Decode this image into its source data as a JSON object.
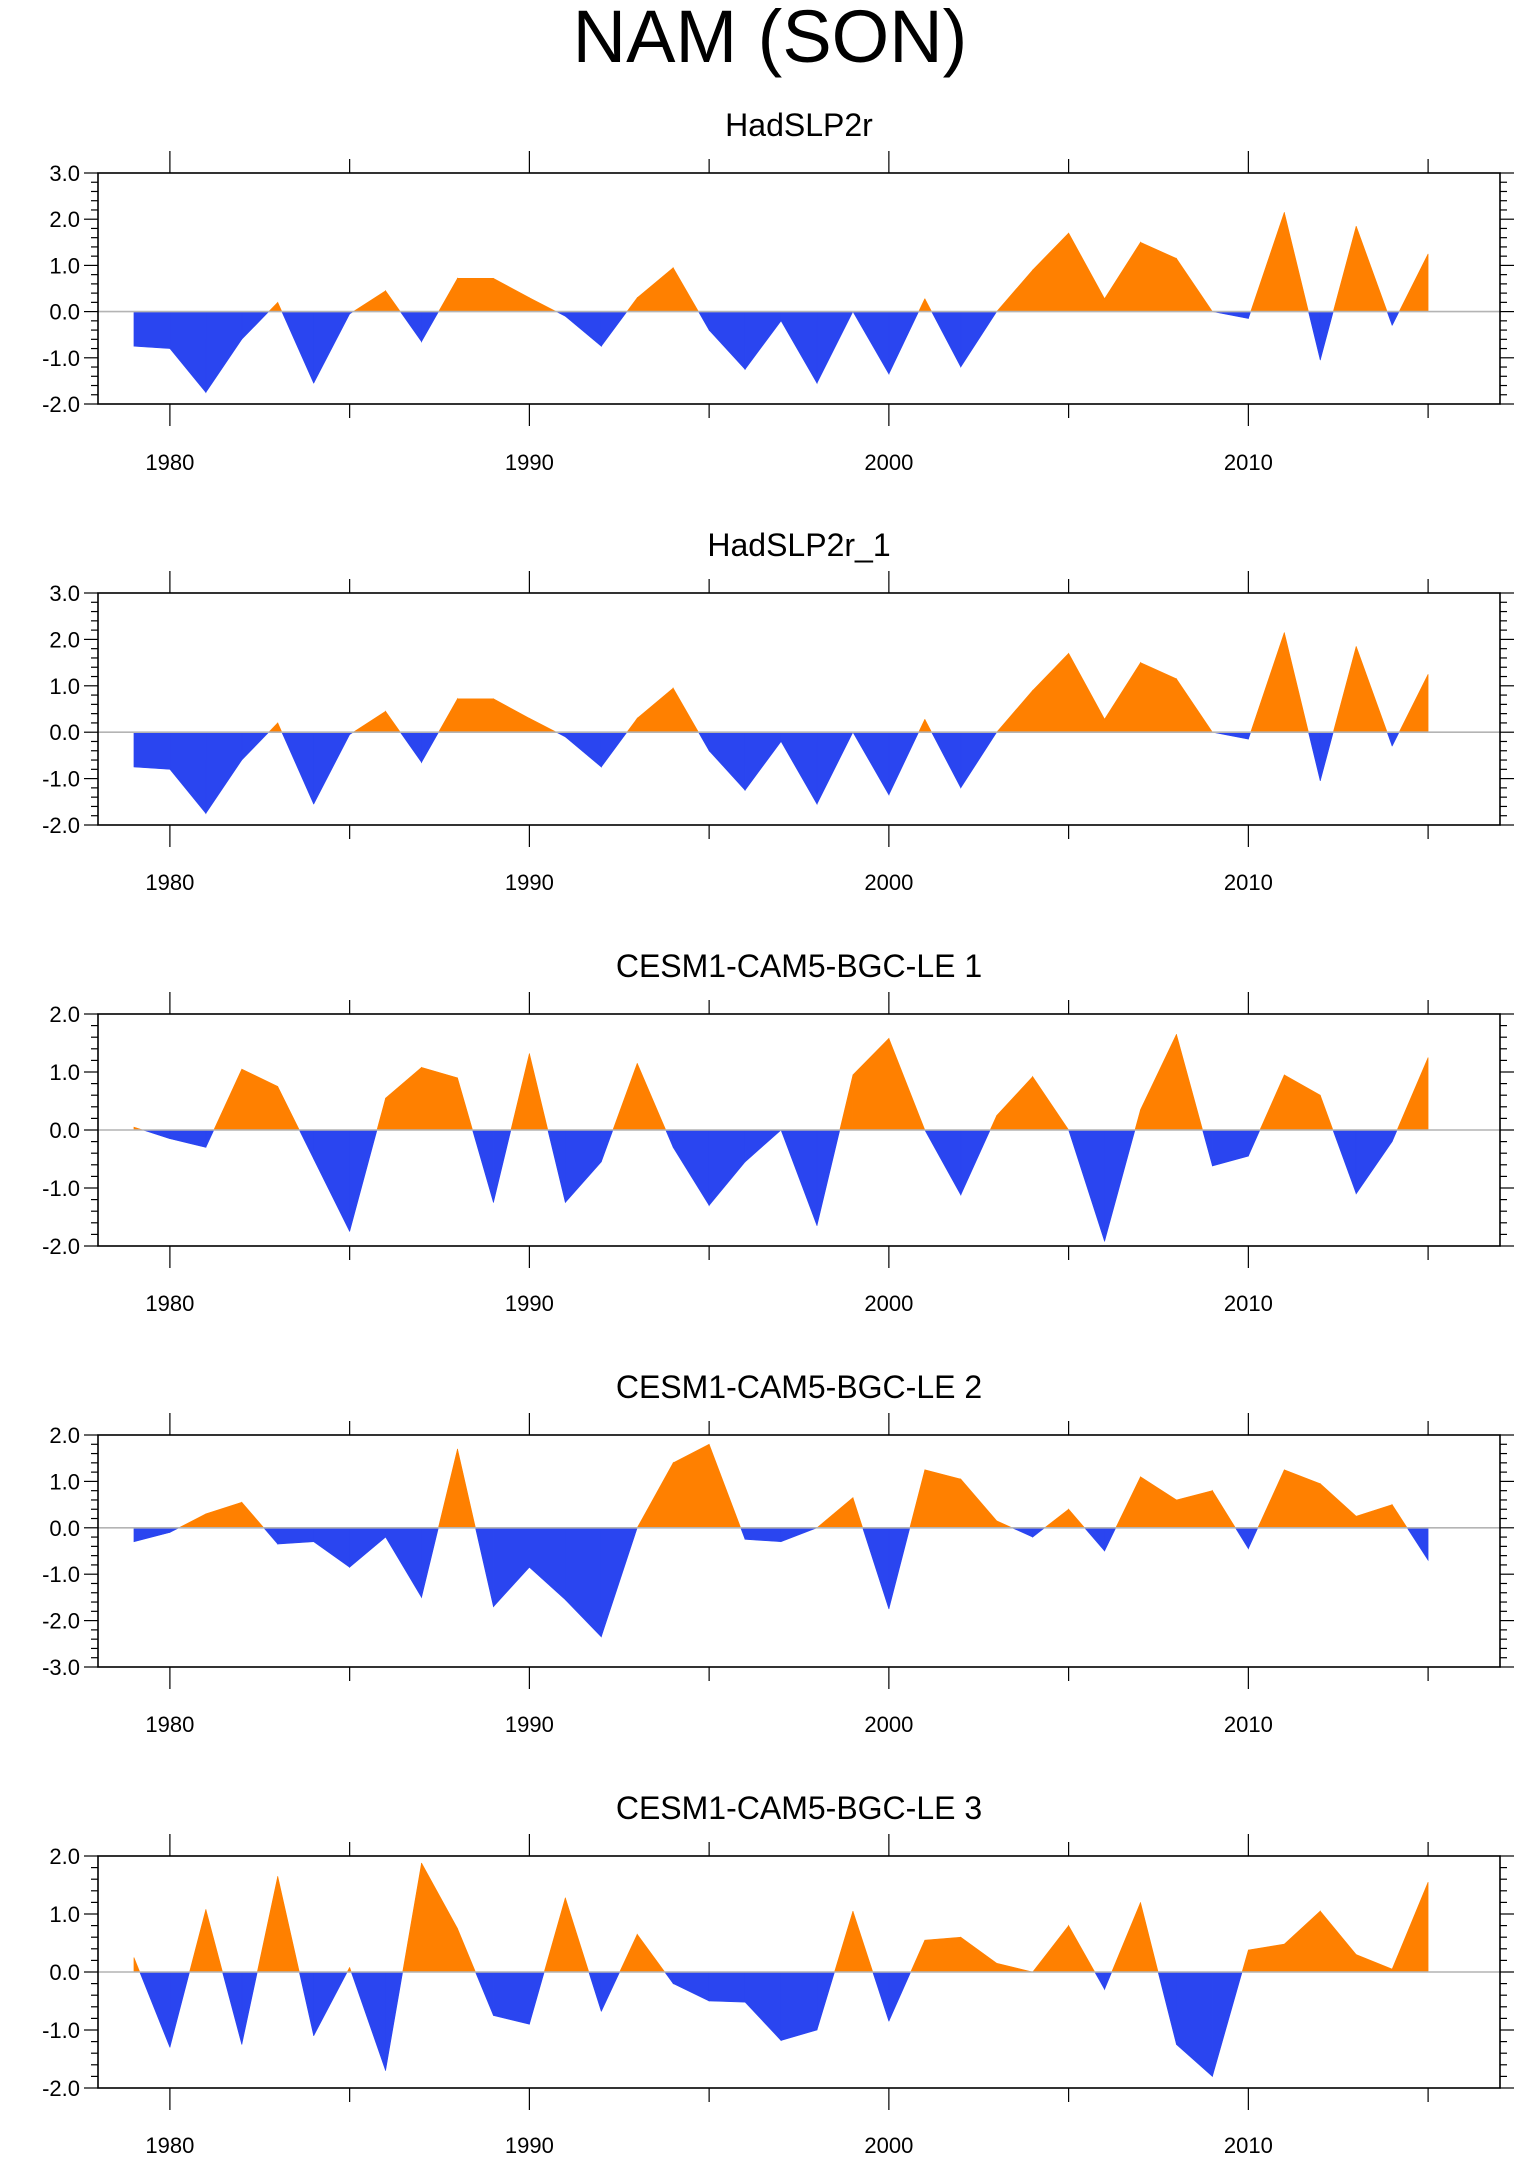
{
  "figure_title": "NAM (SON)",
  "colors": {
    "positive": "#ff8000",
    "negative": "#2a45f0",
    "zero_line": "#b4b4b4",
    "axis": "#000000"
  },
  "chart_data": [
    {
      "type": "area",
      "title": "HadSLP2r",
      "xlabel": "",
      "ylabel": "",
      "xlim": [
        1978,
        2017
      ],
      "ylim": [
        -2.0,
        3.0
      ],
      "yticks": [
        -2.0,
        -1.0,
        0.0,
        1.0,
        2.0,
        3.0
      ],
      "ytick_labels": [
        "-2.0",
        "-1.0",
        "0.0",
        "1.0",
        "2.0",
        "3.0"
      ],
      "xticks": [
        1980,
        1990,
        2000,
        2010
      ],
      "xtick_labels": [
        "1980",
        "1990",
        "2000",
        "2010"
      ],
      "x": [
        1979,
        1980,
        1981,
        1982,
        1983,
        1984,
        1985,
        1986,
        1987,
        1988,
        1989,
        1990,
        1991,
        1992,
        1993,
        1994,
        1995,
        1996,
        1997,
        1998,
        1999,
        2000,
        2001,
        2002,
        2003,
        2004,
        2005,
        2006,
        2007,
        2008,
        2009,
        2010,
        2011,
        2012,
        2013,
        2014,
        2015
      ],
      "values": [
        -0.75,
        -0.8,
        -1.75,
        -0.6,
        0.2,
        -1.55,
        -0.05,
        0.45,
        -0.65,
        0.72,
        0.72,
        0.3,
        -0.1,
        -0.75,
        0.3,
        0.95,
        -0.4,
        -1.25,
        -0.2,
        -1.55,
        0.0,
        -1.35,
        0.28,
        -1.2,
        0.0,
        0.9,
        1.7,
        0.28,
        1.5,
        1.15,
        0.0,
        -0.15,
        2.15,
        -1.05,
        1.85,
        -0.3,
        1.25
      ]
    },
    {
      "type": "area",
      "title": "HadSLP2r_1",
      "xlabel": "",
      "ylabel": "",
      "xlim": [
        1978,
        2017
      ],
      "ylim": [
        -2.0,
        3.0
      ],
      "yticks": [
        -2.0,
        -1.0,
        0.0,
        1.0,
        2.0,
        3.0
      ],
      "ytick_labels": [
        "-2.0",
        "-1.0",
        "0.0",
        "1.0",
        "2.0",
        "3.0"
      ],
      "xticks": [
        1980,
        1990,
        2000,
        2010
      ],
      "xtick_labels": [
        "1980",
        "1990",
        "2000",
        "2010"
      ],
      "x": [
        1979,
        1980,
        1981,
        1982,
        1983,
        1984,
        1985,
        1986,
        1987,
        1988,
        1989,
        1990,
        1991,
        1992,
        1993,
        1994,
        1995,
        1996,
        1997,
        1998,
        1999,
        2000,
        2001,
        2002,
        2003,
        2004,
        2005,
        2006,
        2007,
        2008,
        2009,
        2010,
        2011,
        2012,
        2013,
        2014,
        2015
      ],
      "values": [
        -0.75,
        -0.8,
        -1.75,
        -0.6,
        0.2,
        -1.55,
        -0.05,
        0.45,
        -0.65,
        0.72,
        0.72,
        0.3,
        -0.1,
        -0.75,
        0.3,
        0.95,
        -0.4,
        -1.25,
        -0.2,
        -1.55,
        0.0,
        -1.35,
        0.28,
        -1.2,
        0.0,
        0.9,
        1.7,
        0.28,
        1.5,
        1.15,
        0.0,
        -0.15,
        2.15,
        -1.05,
        1.85,
        -0.3,
        1.25
      ]
    },
    {
      "type": "area",
      "title": "CESM1-CAM5-BGC-LE 1",
      "xlabel": "",
      "ylabel": "",
      "xlim": [
        1978,
        2017
      ],
      "ylim": [
        -2.0,
        2.0
      ],
      "yticks": [
        -2.0,
        -1.0,
        0.0,
        1.0,
        2.0
      ],
      "ytick_labels": [
        "-2.0",
        "-1.0",
        "0.0",
        "1.0",
        "2.0"
      ],
      "xticks": [
        1980,
        1990,
        2000,
        2010
      ],
      "xtick_labels": [
        "1980",
        "1990",
        "2000",
        "2010"
      ],
      "x": [
        1979,
        1980,
        1981,
        1982,
        1983,
        1984,
        1985,
        1986,
        1987,
        1988,
        1989,
        1990,
        1991,
        1992,
        1993,
        1994,
        1995,
        1996,
        1997,
        1998,
        1999,
        2000,
        2001,
        2002,
        2003,
        2004,
        2005,
        2006,
        2007,
        2008,
        2009,
        2010,
        2011,
        2012,
        2013,
        2014,
        2015
      ],
      "values": [
        0.05,
        -0.15,
        -0.3,
        1.05,
        0.75,
        -0.5,
        -1.75,
        0.55,
        1.08,
        0.9,
        -1.25,
        1.32,
        -1.25,
        -0.55,
        1.15,
        -0.3,
        -1.3,
        -0.55,
        0.0,
        -1.65,
        0.95,
        1.58,
        0.0,
        -1.12,
        0.25,
        0.92,
        0.0,
        -1.92,
        0.35,
        1.65,
        -0.62,
        -0.45,
        0.95,
        0.6,
        -1.1,
        -0.2,
        1.25
      ]
    },
    {
      "type": "area",
      "title": "CESM1-CAM5-BGC-LE 2",
      "xlabel": "",
      "ylabel": "",
      "xlim": [
        1978,
        2017
      ],
      "ylim": [
        -3.0,
        2.0
      ],
      "yticks": [
        -3.0,
        -2.0,
        -1.0,
        0.0,
        1.0,
        2.0
      ],
      "ytick_labels": [
        "-3.0",
        "-2.0",
        "-1.0",
        "0.0",
        "1.0",
        "2.0"
      ],
      "xticks": [
        1980,
        1990,
        2000,
        2010
      ],
      "xtick_labels": [
        "1980",
        "1990",
        "2000",
        "2010"
      ],
      "x": [
        1979,
        1980,
        1981,
        1982,
        1983,
        1984,
        1985,
        1986,
        1987,
        1988,
        1989,
        1990,
        1991,
        1992,
        1993,
        1994,
        1995,
        1996,
        1997,
        1998,
        1999,
        2000,
        2001,
        2002,
        2003,
        2004,
        2005,
        2006,
        2007,
        2008,
        2009,
        2010,
        2011,
        2012,
        2013,
        2014,
        2015
      ],
      "values": [
        -0.3,
        -0.1,
        0.3,
        0.55,
        -0.35,
        -0.3,
        -0.85,
        -0.2,
        -1.5,
        1.7,
        -1.7,
        -0.85,
        -1.55,
        -2.35,
        0.0,
        1.4,
        1.8,
        -0.25,
        -0.3,
        0.0,
        0.65,
        -1.75,
        1.25,
        1.05,
        0.15,
        -0.2,
        0.4,
        -0.5,
        1.1,
        0.6,
        0.8,
        -0.45,
        1.25,
        0.95,
        0.25,
        0.5,
        -0.7
      ]
    },
    {
      "type": "area",
      "title": "CESM1-CAM5-BGC-LE 3",
      "xlabel": "",
      "ylabel": "",
      "xlim": [
        1978,
        2017
      ],
      "ylim": [
        -2.0,
        2.0
      ],
      "yticks": [
        -2.0,
        -1.0,
        0.0,
        1.0,
        2.0
      ],
      "ytick_labels": [
        "-2.0",
        "-1.0",
        "0.0",
        "1.0",
        "2.0"
      ],
      "xticks": [
        1980,
        1990,
        2000,
        2010
      ],
      "xtick_labels": [
        "1980",
        "1990",
        "2000",
        "2010"
      ],
      "x": [
        1979,
        1980,
        1981,
        1982,
        1983,
        1984,
        1985,
        1986,
        1987,
        1988,
        1989,
        1990,
        1991,
        1992,
        1993,
        1994,
        1995,
        1996,
        1997,
        1998,
        1999,
        2000,
        2001,
        2002,
        2003,
        2004,
        2005,
        2006,
        2007,
        2008,
        2009,
        2010,
        2011,
        2012,
        2013,
        2014,
        2015
      ],
      "values": [
        0.25,
        -1.3,
        1.08,
        -1.25,
        1.65,
        -1.1,
        0.08,
        -1.7,
        1.88,
        0.75,
        -0.75,
        -0.9,
        1.28,
        -0.68,
        0.65,
        -0.2,
        -0.5,
        -0.52,
        -1.18,
        -1.0,
        1.05,
        -0.85,
        0.55,
        0.6,
        0.15,
        0.0,
        0.8,
        -0.3,
        1.2,
        -1.25,
        -1.8,
        0.38,
        0.48,
        1.05,
        0.3,
        0.05,
        1.55
      ]
    }
  ]
}
